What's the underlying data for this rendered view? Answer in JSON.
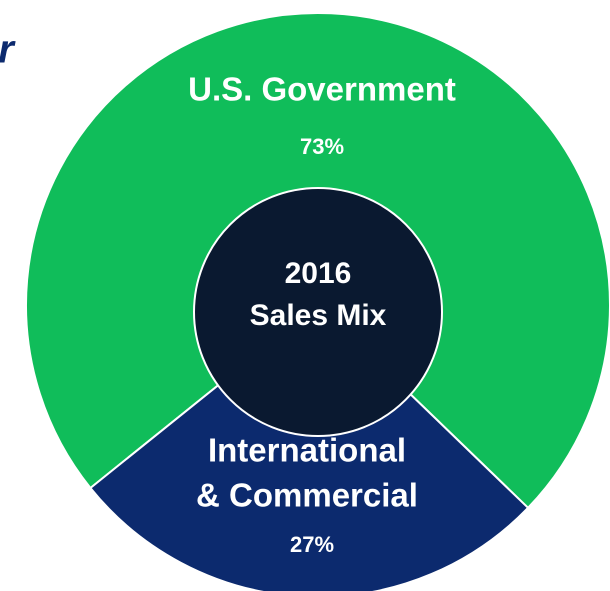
{
  "chart_data": {
    "type": "donut",
    "edge_text": "r",
    "center_label": "2016\nSales Mix",
    "categories": [
      "U.S. Government",
      "International\n& Commercial"
    ],
    "values": [
      73,
      27
    ],
    "value_labels": [
      "73%",
      "27%"
    ],
    "colors": [
      "#10bd5a",
      "#0c2a6e"
    ],
    "center_color": "#0a1930"
  }
}
